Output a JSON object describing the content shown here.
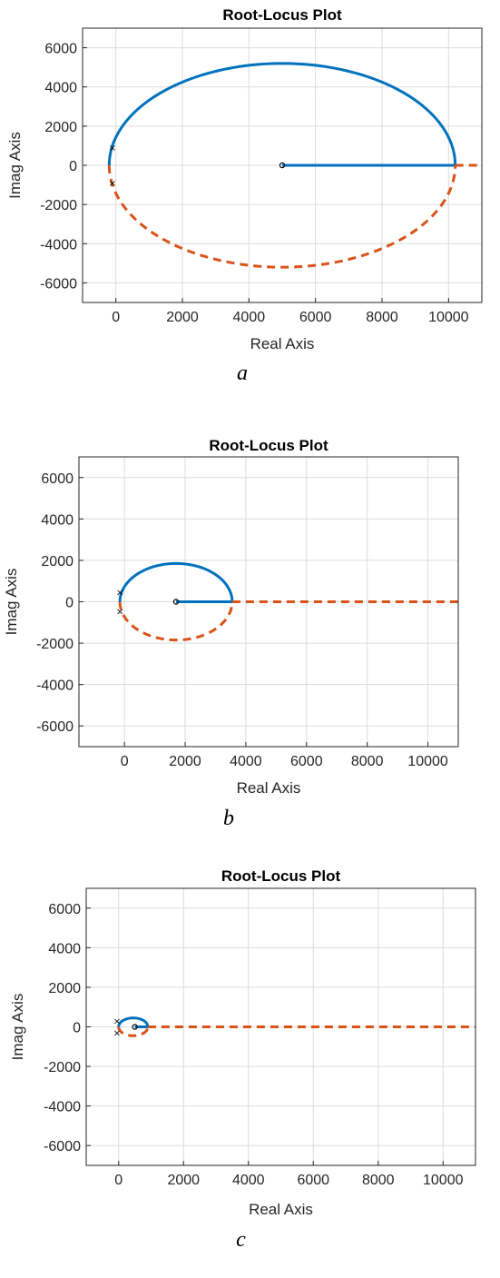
{
  "chart_data": [
    {
      "type": "line",
      "title": "Root-Locus Plot",
      "xlabel": "Real Axis",
      "ylabel": "Imag Axis",
      "caption": "a",
      "xlim": [
        -1000,
        11000
      ],
      "ylim": [
        -7000,
        7000
      ],
      "xticks": [
        0,
        2000,
        4000,
        6000,
        8000,
        10000
      ],
      "yticks": [
        -6000,
        -4000,
        -2000,
        0,
        2000,
        4000,
        6000
      ],
      "grid": true,
      "center": 5000,
      "radius": 5200,
      "poles": [
        [
          -100,
          900
        ],
        [
          -100,
          -900
        ]
      ],
      "zeros": [
        [
          5000,
          0
        ]
      ],
      "series": [
        {
          "style": "solid",
          "color": "#0072BD",
          "desc": "upper arc and real-axis branch"
        },
        {
          "style": "dashed",
          "color": "#D95319",
          "desc": "lower arc and real-axis extension"
        }
      ]
    },
    {
      "type": "line",
      "title": "Root-Locus Plot",
      "xlabel": "Real Axis",
      "ylabel": "Imag Axis",
      "caption": "b",
      "xlim": [
        -1500,
        11000
      ],
      "ylim": [
        -7000,
        7000
      ],
      "xticks": [
        0,
        2000,
        4000,
        6000,
        8000,
        10000
      ],
      "yticks": [
        -6000,
        -4000,
        -2000,
        0,
        2000,
        4000,
        6000
      ],
      "grid": true,
      "center": 1700,
      "radius": 1850,
      "poles": [
        [
          -150,
          450
        ],
        [
          -150,
          -450
        ]
      ],
      "zeros": [
        [
          1700,
          0
        ]
      ],
      "series": [
        {
          "style": "solid",
          "color": "#0072BD",
          "desc": "upper arc and real-axis branch"
        },
        {
          "style": "dashed",
          "color": "#D95319",
          "desc": "lower arc and real-axis extension"
        }
      ]
    },
    {
      "type": "line",
      "title": "Root-Locus Plot",
      "xlabel": "Real Axis",
      "ylabel": "Imag Axis",
      "caption": "c",
      "xlim": [
        -1000,
        11000
      ],
      "ylim": [
        -7000,
        7000
      ],
      "xticks": [
        0,
        2000,
        4000,
        6000,
        8000,
        10000
      ],
      "yticks": [
        -6000,
        -4000,
        -2000,
        0,
        2000,
        4000,
        6000
      ],
      "grid": true,
      "center": 450,
      "radius": 450,
      "poles": [
        [
          -50,
          300
        ],
        [
          -50,
          -300
        ]
      ],
      "zeros": [
        [
          500,
          0
        ]
      ],
      "series": [
        {
          "style": "solid",
          "color": "#0072BD",
          "desc": "upper arc and real-axis branch"
        },
        {
          "style": "dashed",
          "color": "#D95319",
          "desc": "lower arc and real-axis extension"
        }
      ]
    }
  ]
}
